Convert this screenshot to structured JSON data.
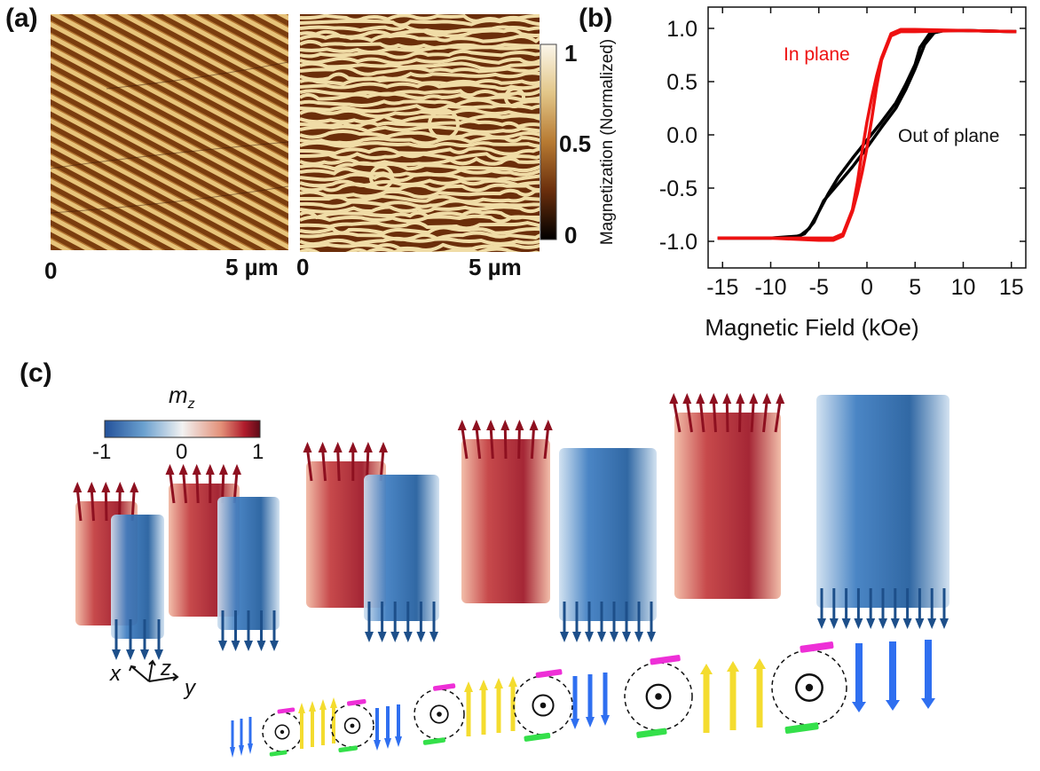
{
  "panels": {
    "a": "(a)",
    "b": "(b)",
    "c": "(c)"
  },
  "afm": {
    "left_x_start": "0",
    "left_x_end": "5 µm",
    "right_x_start": "0",
    "right_x_end": "5 µm",
    "colorbar_ticks": [
      "1",
      "0.5",
      "0"
    ],
    "colorbar_colors": [
      "#fbf6ea",
      "#e2c688",
      "#b77a32",
      "#6a2e0c",
      "#000000"
    ]
  },
  "chart_data": {
    "type": "line",
    "xlabel": "Magnetic Field (kOe)",
    "ylabel": "Magnetization (Normalized)",
    "xlim": [
      -16.5,
      16.5
    ],
    "ylim": [
      -1.25,
      1.2
    ],
    "xticks": [
      -15,
      -10,
      -5,
      0,
      5,
      10,
      15
    ],
    "xtick_labels": [
      "-15",
      "-10",
      "-5",
      "0",
      "5",
      "10",
      "15"
    ],
    "yticks": [
      -1.0,
      -0.5,
      0.0,
      0.5,
      1.0
    ],
    "ytick_labels": [
      "-1.0",
      "-0.5",
      "0.0",
      "0.5",
      "1.0"
    ],
    "series": [
      {
        "name": "Out of plane",
        "color": "#000000",
        "branches": [
          {
            "x": [
              -15.5,
              -10,
              -7.5,
              -6.5,
              -5.5,
              -4.5,
              -3,
              -1.5,
              0,
              1.5,
              3,
              4,
              5,
              6,
              7,
              8,
              10,
              15.5
            ],
            "y": [
              -0.97,
              -0.97,
              -0.96,
              -0.93,
              -0.82,
              -0.62,
              -0.46,
              -0.3,
              -0.12,
              0.07,
              0.25,
              0.42,
              0.62,
              0.85,
              0.96,
              0.98,
              0.98,
              0.97
            ]
          },
          {
            "x": [
              -15.5,
              -10,
              -7,
              -6,
              -5,
              -4,
              -3,
              -1.5,
              0,
              1.5,
              3,
              4,
              5,
              5.5,
              6.5,
              8,
              10,
              15.5
            ],
            "y": [
              -0.97,
              -0.97,
              -0.95,
              -0.88,
              -0.72,
              -0.55,
              -0.4,
              -0.22,
              -0.05,
              0.12,
              0.3,
              0.47,
              0.66,
              0.82,
              0.95,
              0.98,
              0.98,
              0.97
            ]
          }
        ]
      },
      {
        "name": "In plane",
        "color": "#ee1111",
        "branches": [
          {
            "x": [
              -15.5,
              -10,
              -5,
              -3.5,
              -2.5,
              -1.5,
              -1,
              -0.5,
              0,
              0.5,
              1,
              1.5,
              2.5,
              3.5,
              5,
              10,
              15.5
            ],
            "y": [
              -0.97,
              -0.97,
              -0.97,
              -0.97,
              -0.93,
              -0.7,
              -0.45,
              -0.15,
              0.12,
              0.35,
              0.55,
              0.72,
              0.95,
              0.99,
              0.99,
              0.98,
              0.97
            ]
          },
          {
            "x": [
              -15.5,
              -10,
              -5,
              -3.5,
              -2.5,
              -1.5,
              -1,
              -0.5,
              0,
              0.5,
              1,
              1.5,
              2.5,
              3.5,
              5,
              10,
              15.5
            ],
            "y": [
              -0.97,
              -0.97,
              -0.99,
              -0.99,
              -0.95,
              -0.72,
              -0.55,
              -0.35,
              -0.12,
              0.15,
              0.45,
              0.7,
              0.93,
              0.97,
              0.97,
              0.98,
              0.97
            ]
          }
        ]
      }
    ]
  },
  "diagram": {
    "colorbar_label": "m",
    "colorbar_label_sub": "z",
    "colorbar_ticks": [
      "-1",
      "0",
      "1"
    ],
    "colorbar_colors": [
      "#23519a",
      "#6aa0cf",
      "#f2f2f2",
      "#e39078",
      "#b01c2c",
      "#5e0b18"
    ],
    "axes": {
      "x": "x",
      "y": "y",
      "z": "z"
    },
    "colors": {
      "up": "#f4dc2f",
      "down": "#2f6ff0",
      "cw": "#ee2fd7",
      "ccw": "#34e04a",
      "red": "#b5202f",
      "blue": "#2a66a8"
    }
  }
}
